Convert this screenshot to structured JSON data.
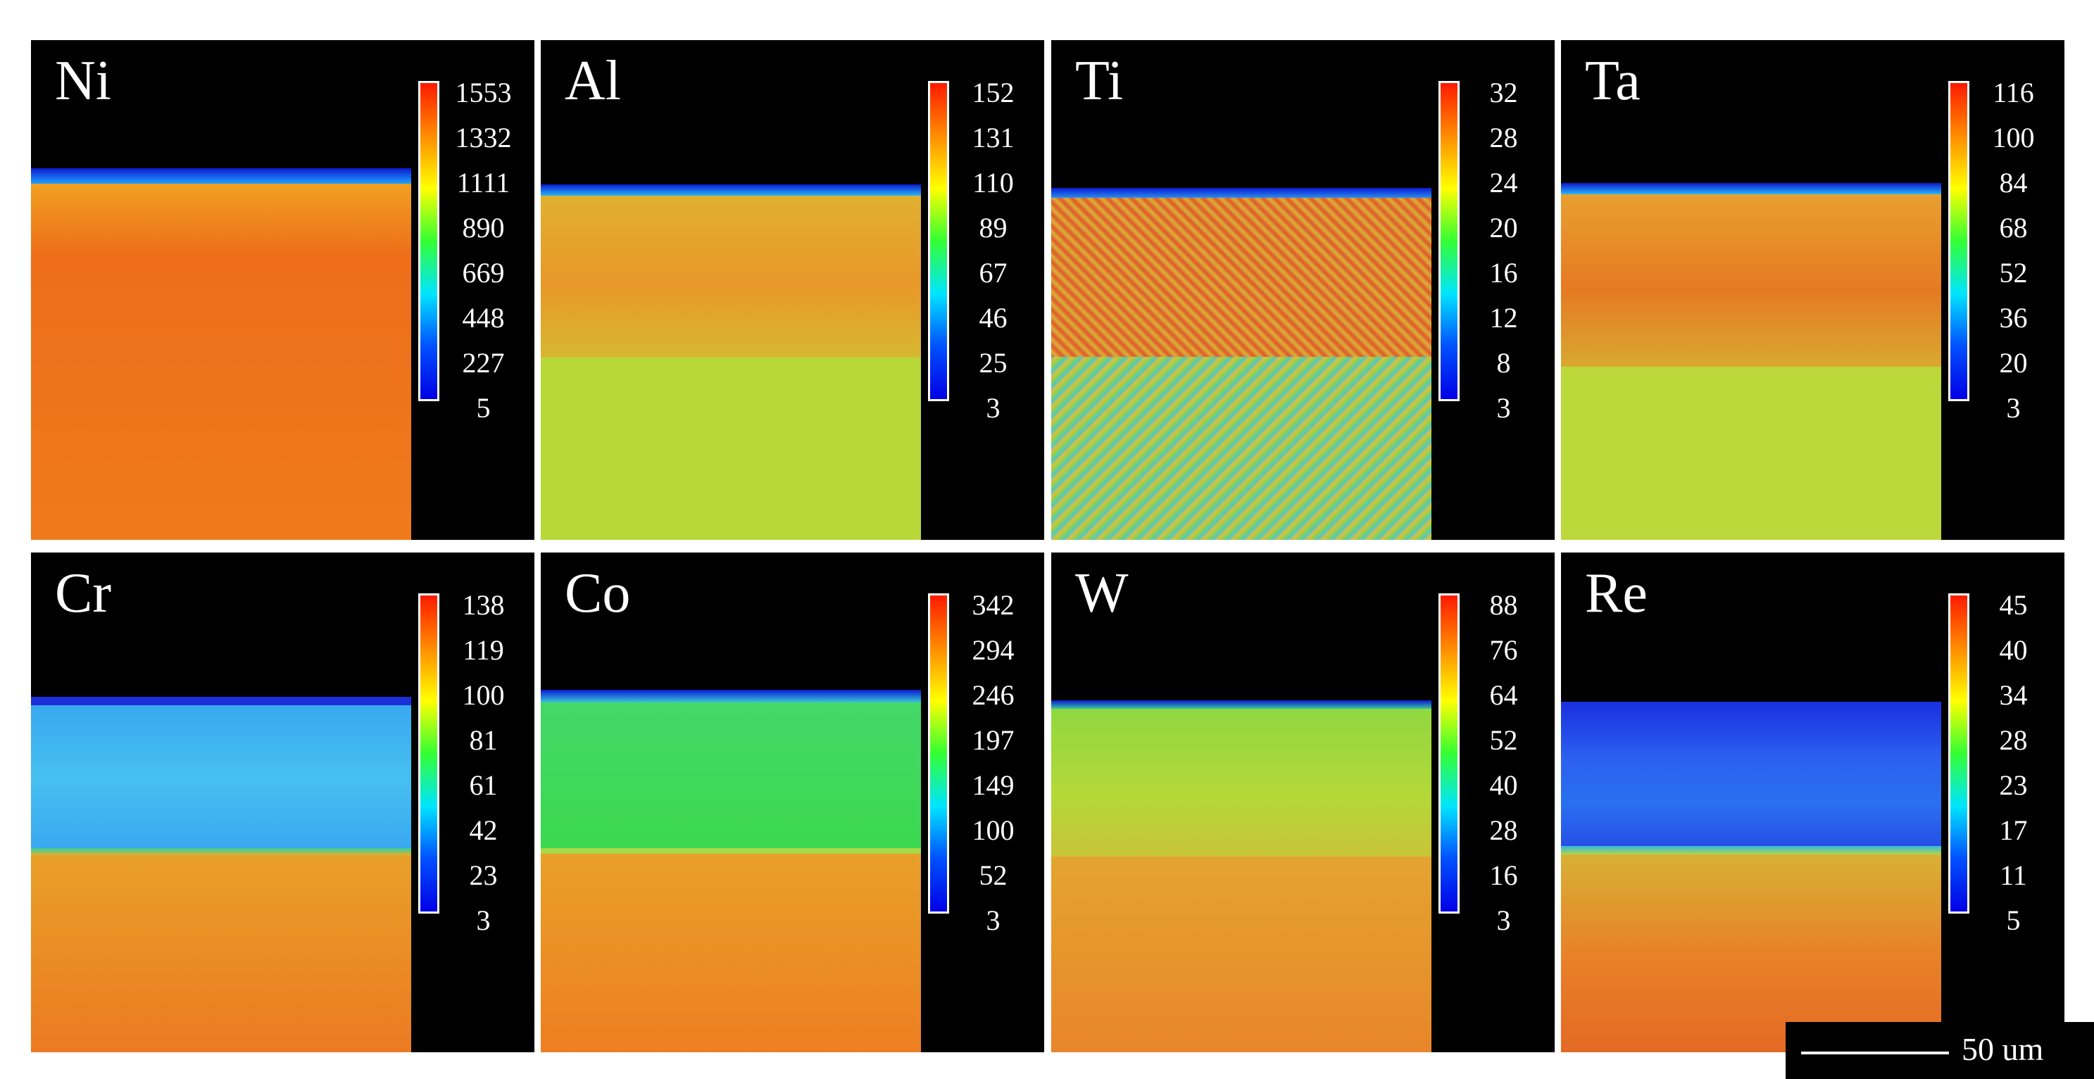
{
  "panels": [
    {
      "element": "Ni",
      "colorbar_ticks": [
        "1553",
        "1332",
        "1111",
        "890",
        "669",
        "448",
        "227",
        "5"
      ]
    },
    {
      "element": "Al",
      "colorbar_ticks": [
        "152",
        "131",
        "110",
        "89",
        "67",
        "46",
        "25",
        "3"
      ]
    },
    {
      "element": "Ti",
      "colorbar_ticks": [
        "32",
        "28",
        "24",
        "20",
        "16",
        "12",
        "8",
        "3"
      ]
    },
    {
      "element": "Ta",
      "colorbar_ticks": [
        "116",
        "100",
        "84",
        "68",
        "52",
        "36",
        "20",
        "3"
      ]
    },
    {
      "element": "Cr",
      "colorbar_ticks": [
        "138",
        "119",
        "100",
        "81",
        "61",
        "42",
        "23",
        "3"
      ]
    },
    {
      "element": "Co",
      "colorbar_ticks": [
        "342",
        "294",
        "246",
        "197",
        "149",
        "100",
        "52",
        "3"
      ]
    },
    {
      "element": "W",
      "colorbar_ticks": [
        "88",
        "76",
        "64",
        "52",
        "40",
        "28",
        "16",
        "3"
      ]
    },
    {
      "element": "Re",
      "colorbar_ticks": [
        "45",
        "40",
        "34",
        "28",
        "23",
        "17",
        "11",
        "5"
      ]
    }
  ],
  "scale_bar": {
    "label": "50 um"
  },
  "colors": {
    "background": "#000000",
    "red": "#f04a10",
    "orange": "#f07a18",
    "yellow_orange": "#d8c030",
    "yellow_green": "#b8d838",
    "green": "#3cd850",
    "cyan": "#38b8f0",
    "blue": "#2858f0",
    "deep_blue": "#1020d8"
  }
}
